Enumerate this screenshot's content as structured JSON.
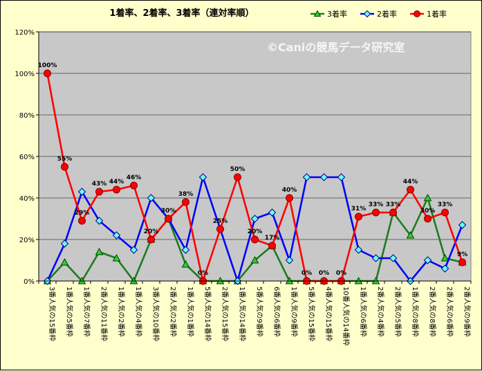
{
  "chart_data": {
    "type": "line",
    "title": "1着率、2着率、3着率（連対率順）",
    "watermark": "©Caniの競馬データ研究室",
    "ylim": [
      0,
      120
    ],
    "yticks": [
      "0%",
      "20%",
      "40%",
      "60%",
      "80%",
      "100%",
      "120%"
    ],
    "grid": true,
    "legend_position": "top-right",
    "categories": [
      "3番人気の15番枠",
      "1番人気の5番枠",
      "1番人気の7番枠",
      "2番人気の11番枠",
      "1番人気の2番枠",
      "1番人気の4番枠",
      "3番人気の10番枠",
      "2番人気の2番枠",
      "1番人気の1番枠",
      "5番人気の14番枠",
      "2番人気の15番枠",
      "1番人気の14番枠",
      "5番人気の9番枠",
      "6番人気の6番枠",
      "1番人気の9番枠",
      "5番人気の15番枠",
      "4番人気の15番枠",
      "10番人気の14番枠",
      "1番人気の6番枠",
      "2番人気の4番枠",
      "2番人気の5番枠",
      "1番人気の8番枠",
      "2番人気の8番枠",
      "2番人気の6番枠",
      "2番人気の9番枠"
    ],
    "series": [
      {
        "name": "3着率",
        "color": "#1e7b1e",
        "marker": "triangle",
        "marker_fill": "#33cc33",
        "values": [
          0,
          9,
          0,
          14,
          11,
          0,
          20,
          30,
          8,
          0,
          0,
          0,
          10,
          17,
          0,
          0,
          0,
          0,
          0,
          0,
          33,
          22,
          40,
          11,
          9
        ]
      },
      {
        "name": "2着率",
        "color": "#0000ff",
        "marker": "diamond",
        "marker_fill": "#66ffff",
        "values": [
          0,
          18,
          43,
          29,
          22,
          15,
          40,
          30,
          15,
          50,
          25,
          0,
          30,
          33,
          10,
          50,
          50,
          50,
          15,
          11,
          11,
          0,
          10,
          6,
          27
        ]
      },
      {
        "name": "1着率",
        "color": "#ff0000",
        "marker": "circle",
        "marker_fill": "#ff0000",
        "values": [
          100,
          55,
          29,
          43,
          44,
          46,
          20,
          30,
          38,
          0,
          25,
          50,
          20,
          17,
          40,
          0,
          0,
          0,
          31,
          33,
          33,
          44,
          30,
          33,
          9
        ]
      }
    ],
    "data_labels": [
      "100%",
      "55%",
      "29%",
      "43%",
      "44%",
      "46%",
      "20%",
      "30%",
      "38%",
      "0%",
      "25%",
      "50%",
      "20%",
      "17%",
      "40%",
      "0%",
      "0%",
      "0%",
      "31%",
      "33%",
      "33%",
      "44%",
      "30%",
      "33%",
      "9%"
    ]
  }
}
